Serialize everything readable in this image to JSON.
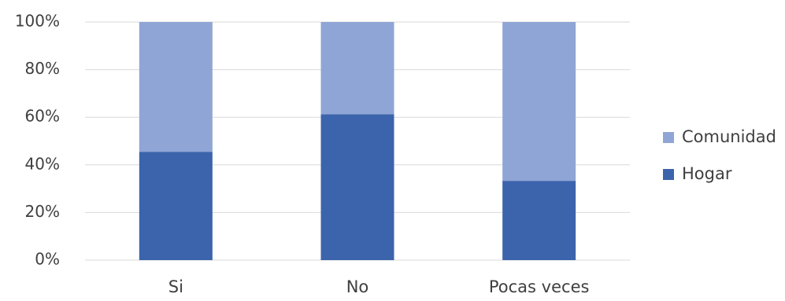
{
  "chart_data": {
    "type": "bar",
    "stacked": true,
    "percent": true,
    "categories": [
      "Si",
      "No",
      "Pocas veces"
    ],
    "series": [
      {
        "name": "Hogar",
        "values": [
          45.5,
          61.3,
          33.3
        ]
      },
      {
        "name": "Comunidad",
        "values": [
          54.5,
          38.7,
          66.7
        ]
      }
    ],
    "yticks": [
      "0%",
      "20%",
      "40%",
      "60%",
      "80%",
      "100%"
    ],
    "ylim": [
      0,
      100
    ],
    "grid": true,
    "legend_position": "right",
    "legend_order": [
      "Comunidad",
      "Hogar"
    ],
    "colors": {
      "Hogar": "#3c64ac",
      "Comunidad": "#8fa5d6",
      "grid": "#d9d9d9",
      "text": "#3f3f3f"
    }
  }
}
